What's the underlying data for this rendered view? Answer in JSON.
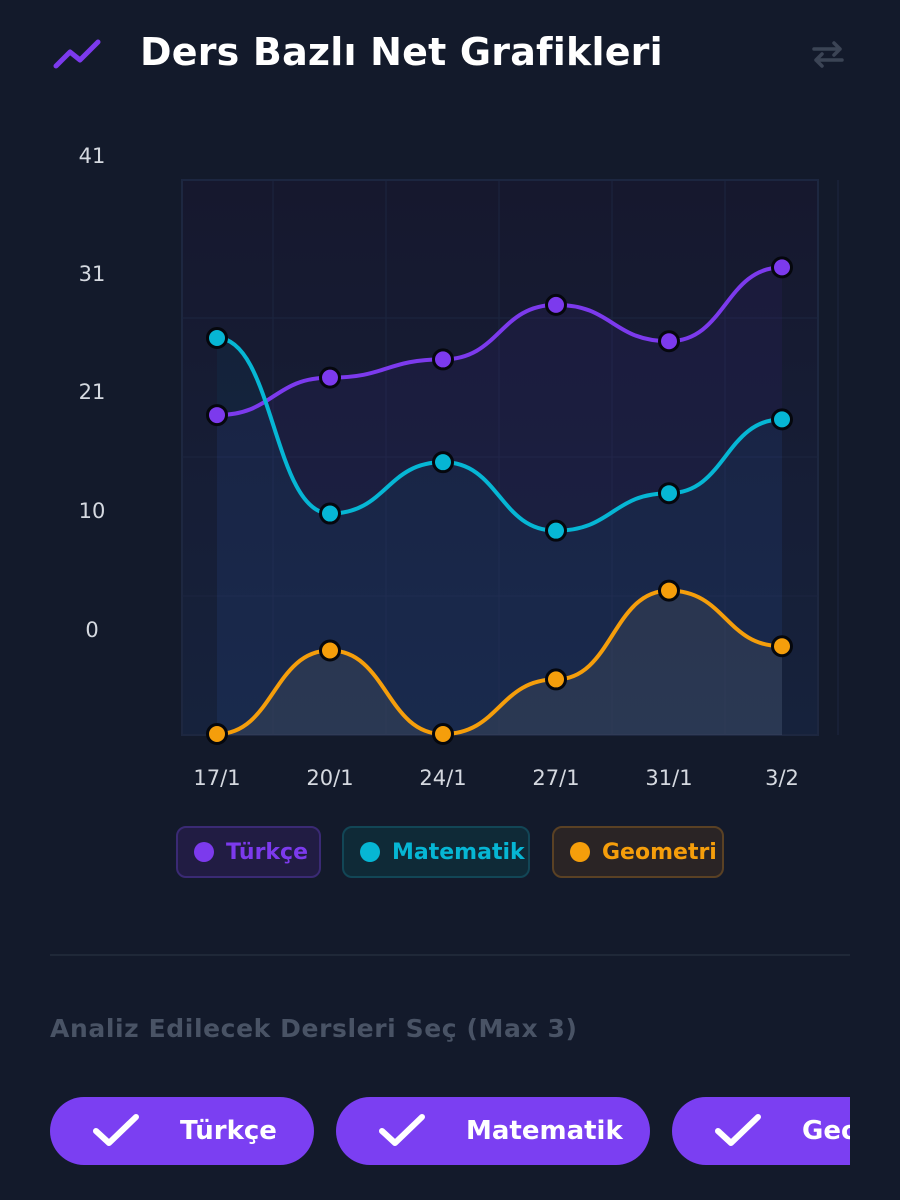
{
  "header": {
    "title": "Ders Bazlı Net Grafikleri",
    "trend_icon": "trend-up-icon",
    "swap_icon": "swap-arrows-icon"
  },
  "chart_data": {
    "type": "line",
    "categories": [
      "17/1",
      "20/1",
      "24/1",
      "27/1",
      "31/1",
      "3/2"
    ],
    "series": [
      {
        "name": "Türkçe",
        "color": "#7c3aed",
        "values": [
          21,
          24.5,
          26.2,
          31.3,
          27.9,
          34.8
        ]
      },
      {
        "name": "Matematik",
        "color": "#06b6d4",
        "values": [
          28.2,
          11.8,
          16.6,
          10.2,
          13.7,
          20.6
        ]
      },
      {
        "name": "Geometri",
        "color": "#f59e0b",
        "values": [
          -8.8,
          -1,
          -8.8,
          -3.7,
          4.6,
          -0.6
        ]
      }
    ],
    "yticks": [
      41,
      31,
      21,
      10,
      0
    ],
    "ylim": [
      -8.8,
      38.2
    ],
    "grid": true,
    "legend_position": "bottom",
    "xlabel": "",
    "ylabel": ""
  },
  "legend": [
    {
      "label": "Türkçe",
      "color": "#7c3aed",
      "bg": "#211c43",
      "border": "#3a2a74"
    },
    {
      "label": "Matematik",
      "color": "#06b6d4",
      "bg": "#0f2a37",
      "border": "#124656"
    },
    {
      "label": "Geometri",
      "color": "#f59e0b",
      "bg": "#2a2425",
      "border": "#5a4124"
    }
  ],
  "selection": {
    "title": "Analiz Edilecek Dersleri Seç (Max 3)",
    "chips": [
      {
        "label": "Türkçe",
        "selected": true
      },
      {
        "label": "Matematik",
        "selected": true
      },
      {
        "label": "Geometri",
        "selected": true
      }
    ]
  }
}
